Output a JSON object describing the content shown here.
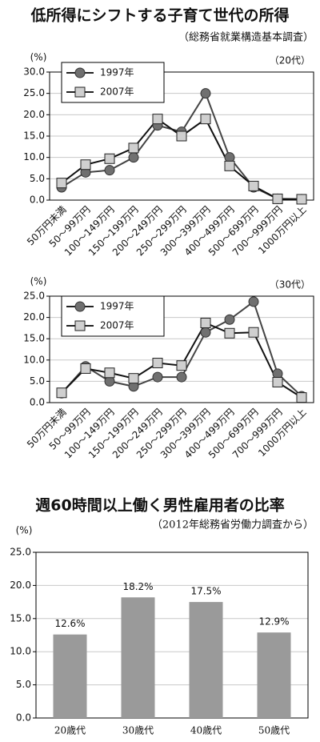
{
  "chart_data": [
    {
      "type": "line",
      "title": "低所得にシフトする子育て世代の所得",
      "subtitle": "（総務省就業構造基本調査）",
      "y_label": "(%)",
      "annotation": "（20代）",
      "categories": [
        "50万円未満",
        "50～99万円",
        "100～149万円",
        "150～199万円",
        "200～249万円",
        "250～299万円",
        "300～399万円",
        "400～499万円",
        "500～699万円",
        "700～999万円",
        "1000万円以上"
      ],
      "series": [
        {
          "name": "1997年",
          "color": "#707070",
          "marker": "circle",
          "values": [
            3.0,
            6.5,
            7.0,
            10.0,
            17.5,
            16.0,
            25.0,
            10.0,
            3.0,
            0.3,
            0.2
          ]
        },
        {
          "name": "2007年",
          "color": "#cfcfcf",
          "marker": "square",
          "values": [
            4.0,
            8.3,
            9.7,
            12.2,
            19.0,
            15.0,
            19.0,
            8.0,
            3.3,
            0.3,
            0.2
          ]
        }
      ],
      "ylim": [
        0,
        30
      ],
      "yticks": [
        {
          "value": 0,
          "label": "0.0"
        },
        {
          "value": 5,
          "label": "5.0"
        },
        {
          "value": 10,
          "label": "10.0"
        },
        {
          "value": 15,
          "label": "15.0"
        },
        {
          "value": 20,
          "label": "20.0"
        },
        {
          "value": 25,
          "label": "25.0"
        },
        {
          "value": 30,
          "label": "30.0"
        }
      ],
      "grid": true
    },
    {
      "type": "line",
      "y_label": "(%)",
      "annotation": "（30代）",
      "categories": [
        "50万円未満",
        "50～99万円",
        "100～149万円",
        "150～199万円",
        "200～249万円",
        "250～299万円",
        "300～399万円",
        "400～499万円",
        "500～699万円",
        "700～999万円",
        "1000万円以上"
      ],
      "series": [
        {
          "name": "1997年",
          "color": "#707070",
          "marker": "circle",
          "values": [
            2.2,
            8.5,
            5.0,
            3.8,
            6.0,
            6.0,
            16.5,
            19.5,
            23.7,
            6.8,
            1.5
          ]
        },
        {
          "name": "2007年",
          "color": "#cfcfcf",
          "marker": "square",
          "values": [
            2.3,
            8.0,
            7.0,
            5.7,
            9.3,
            8.7,
            18.7,
            16.3,
            16.5,
            4.8,
            1.2
          ]
        }
      ],
      "ylim": [
        0,
        25
      ],
      "yticks": [
        {
          "value": 0,
          "label": "0.0"
        },
        {
          "value": 5,
          "label": "5.0"
        },
        {
          "value": 10,
          "label": "10.0"
        },
        {
          "value": 15,
          "label": "15.0"
        },
        {
          "value": 20,
          "label": "20.0"
        },
        {
          "value": 25,
          "label": "25.0"
        }
      ],
      "grid": true
    },
    {
      "type": "bar",
      "title": "週60時間以上働く男性雇用者の比率",
      "subtitle": "（2012年総務省労働力調査から）",
      "y_label": "(%)",
      "categories": [
        "20歳代",
        "30歳代",
        "40歳代",
        "50歳代"
      ],
      "values": [
        12.6,
        18.2,
        17.5,
        12.9
      ],
      "value_labels": [
        "12.6%",
        "18.2%",
        "17.5%",
        "12.9%"
      ],
      "color": "#9a9a9a",
      "ylim": [
        0,
        25
      ],
      "yticks": [
        {
          "value": 0,
          "label": "0.0"
        },
        {
          "value": 5,
          "label": "5.0"
        },
        {
          "value": 10,
          "label": "10.0"
        },
        {
          "value": 15,
          "label": "15.0"
        },
        {
          "value": 20,
          "label": "20.0"
        },
        {
          "value": 25,
          "label": "25.0"
        }
      ],
      "grid": true
    }
  ]
}
